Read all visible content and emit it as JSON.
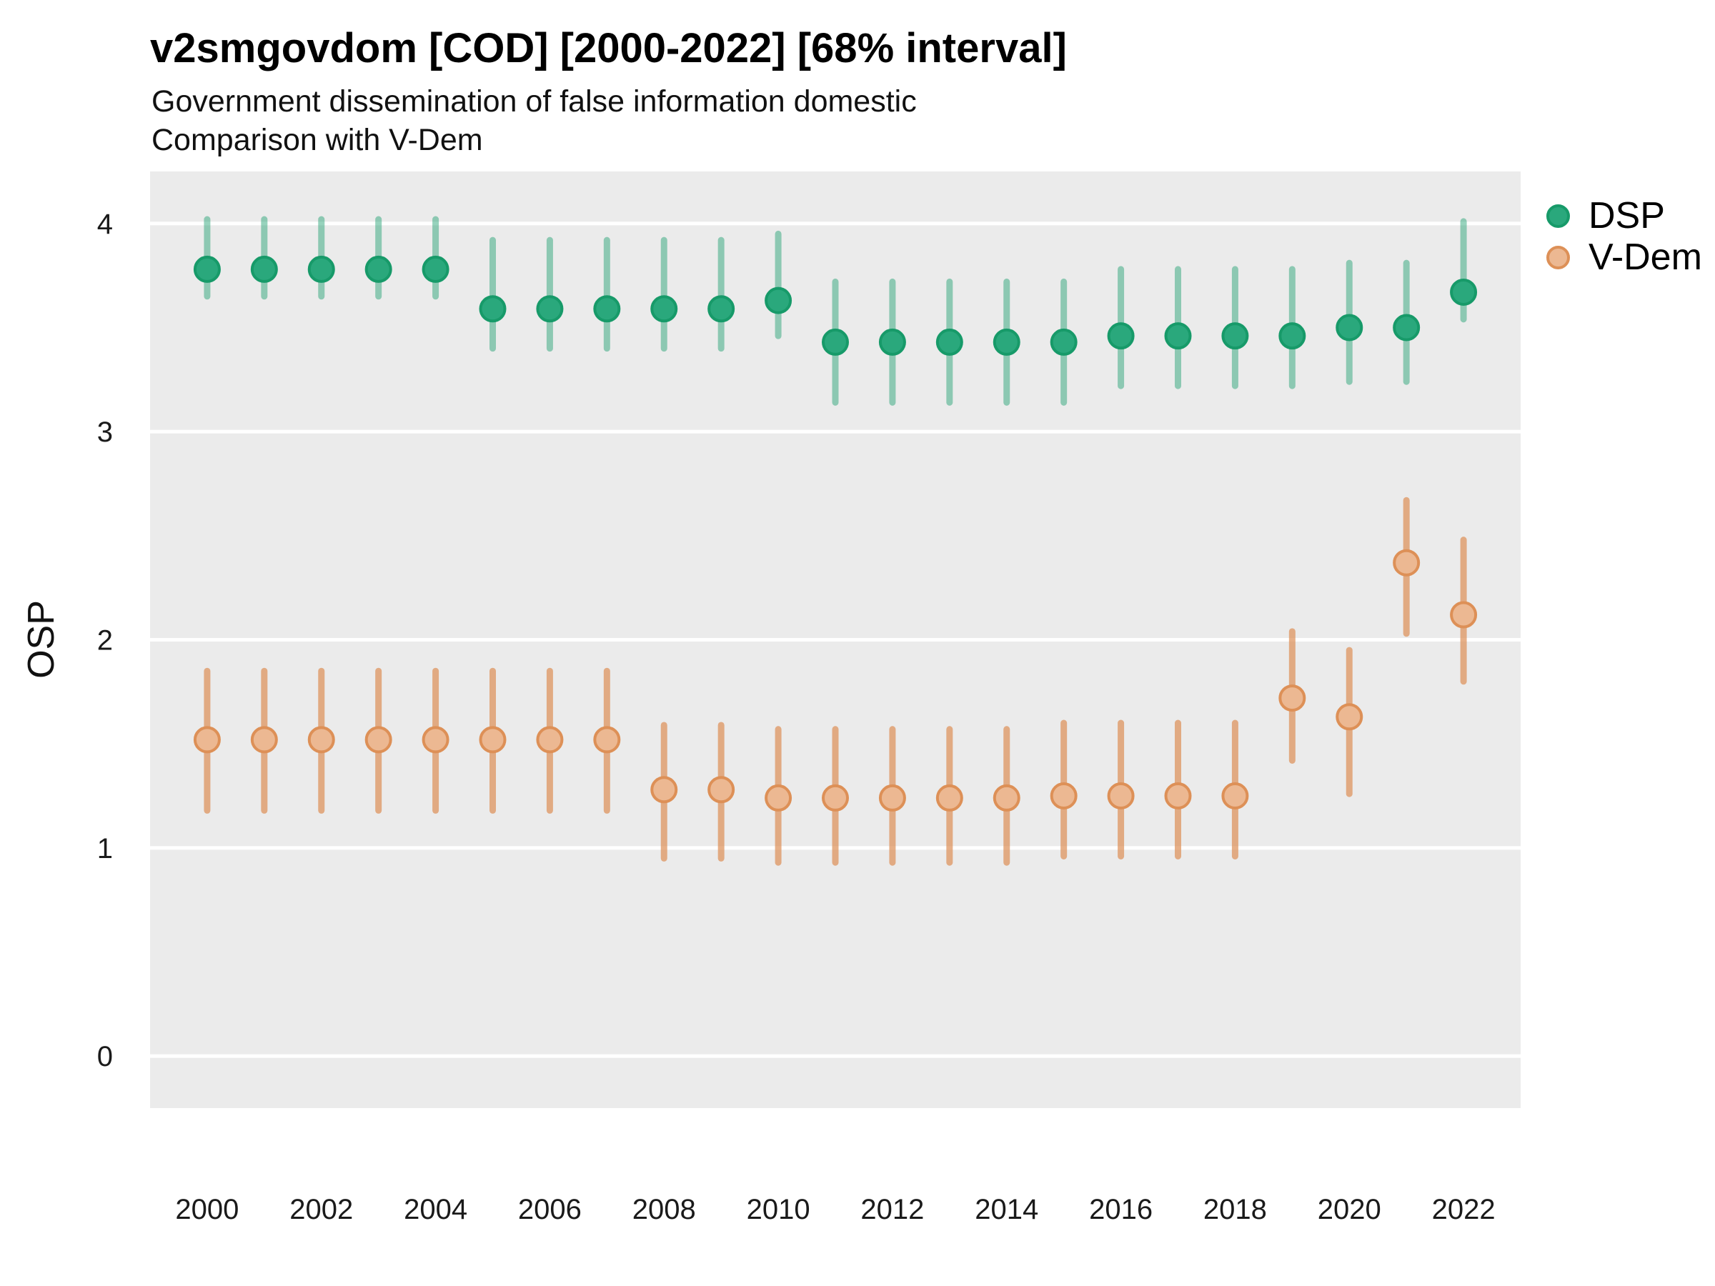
{
  "header": {
    "title": "v2smgovdom [COD] [2000-2022] [68% interval]",
    "subtitle_line1": "Government dissemination of false information domestic",
    "subtitle_line2": "Comparison with V-Dem"
  },
  "axes": {
    "y_title": "OSP",
    "y_tick_labels": [
      4,
      3,
      2,
      1,
      0
    ],
    "x_tick_labels": [
      2000,
      2002,
      2004,
      2006,
      2008,
      2010,
      2012,
      2014,
      2016,
      2018,
      2020,
      2022
    ]
  },
  "colors": {
    "panel_bg": "#ebebeb",
    "gridline": "#ffffff",
    "title_text": "#000000",
    "axis_text": "#1a1a1a"
  },
  "chart_data": {
    "type": "scatter",
    "style": "pointrange",
    "title": "v2smgovdom [COD] [2000-2022] [68% interval]",
    "subtitle": "Government dissemination of false information domestic — Comparison with V-Dem",
    "interval": "68%",
    "xlabel": "",
    "ylabel": "OSP",
    "xlim": [
      1999,
      2023
    ],
    "ylim": [
      -0.25,
      4.25
    ],
    "y_gridlines": [
      0,
      1,
      2,
      3,
      4
    ],
    "grid": "major-horizontal-only",
    "legend_position": "right-top",
    "series": [
      {
        "name": "DSP",
        "fill": "#2aa87c",
        "stroke": "#179a69",
        "bar": "rgba(24,158,108,0.45)",
        "points": [
          {
            "year": 2000,
            "est": 3.78,
            "lo": 3.65,
            "hi": 4.02
          },
          {
            "year": 2001,
            "est": 3.78,
            "lo": 3.65,
            "hi": 4.02
          },
          {
            "year": 2002,
            "est": 3.78,
            "lo": 3.65,
            "hi": 4.02
          },
          {
            "year": 2003,
            "est": 3.78,
            "lo": 3.65,
            "hi": 4.02
          },
          {
            "year": 2004,
            "est": 3.78,
            "lo": 3.65,
            "hi": 4.02
          },
          {
            "year": 2005,
            "est": 3.59,
            "lo": 3.4,
            "hi": 3.92
          },
          {
            "year": 2006,
            "est": 3.59,
            "lo": 3.4,
            "hi": 3.92
          },
          {
            "year": 2007,
            "est": 3.59,
            "lo": 3.4,
            "hi": 3.92
          },
          {
            "year": 2008,
            "est": 3.59,
            "lo": 3.4,
            "hi": 3.92
          },
          {
            "year": 2009,
            "est": 3.59,
            "lo": 3.4,
            "hi": 3.92
          },
          {
            "year": 2010,
            "est": 3.63,
            "lo": 3.46,
            "hi": 3.95
          },
          {
            "year": 2011,
            "est": 3.43,
            "lo": 3.14,
            "hi": 3.72
          },
          {
            "year": 2012,
            "est": 3.43,
            "lo": 3.14,
            "hi": 3.72
          },
          {
            "year": 2013,
            "est": 3.43,
            "lo": 3.14,
            "hi": 3.72
          },
          {
            "year": 2014,
            "est": 3.43,
            "lo": 3.14,
            "hi": 3.72
          },
          {
            "year": 2015,
            "est": 3.43,
            "lo": 3.14,
            "hi": 3.72
          },
          {
            "year": 2016,
            "est": 3.46,
            "lo": 3.22,
            "hi": 3.78
          },
          {
            "year": 2017,
            "est": 3.46,
            "lo": 3.22,
            "hi": 3.78
          },
          {
            "year": 2018,
            "est": 3.46,
            "lo": 3.22,
            "hi": 3.78
          },
          {
            "year": 2019,
            "est": 3.46,
            "lo": 3.22,
            "hi": 3.78
          },
          {
            "year": 2020,
            "est": 3.5,
            "lo": 3.24,
            "hi": 3.81
          },
          {
            "year": 2021,
            "est": 3.5,
            "lo": 3.24,
            "hi": 3.81
          },
          {
            "year": 2022,
            "est": 3.67,
            "lo": 3.54,
            "hi": 4.01
          }
        ]
      },
      {
        "name": "V-Dem",
        "fill": "#ecb892",
        "stroke": "#dd9057",
        "bar": "rgba(221,142,85,0.7)",
        "points": [
          {
            "year": 2000,
            "est": 1.52,
            "lo": 1.18,
            "hi": 1.85
          },
          {
            "year": 2001,
            "est": 1.52,
            "lo": 1.18,
            "hi": 1.85
          },
          {
            "year": 2002,
            "est": 1.52,
            "lo": 1.18,
            "hi": 1.85
          },
          {
            "year": 2003,
            "est": 1.52,
            "lo": 1.18,
            "hi": 1.85
          },
          {
            "year": 2004,
            "est": 1.52,
            "lo": 1.18,
            "hi": 1.85
          },
          {
            "year": 2005,
            "est": 1.52,
            "lo": 1.18,
            "hi": 1.85
          },
          {
            "year": 2006,
            "est": 1.52,
            "lo": 1.18,
            "hi": 1.85
          },
          {
            "year": 2007,
            "est": 1.52,
            "lo": 1.18,
            "hi": 1.85
          },
          {
            "year": 2008,
            "est": 1.28,
            "lo": 0.95,
            "hi": 1.59
          },
          {
            "year": 2009,
            "est": 1.28,
            "lo": 0.95,
            "hi": 1.59
          },
          {
            "year": 2010,
            "est": 1.24,
            "lo": 0.93,
            "hi": 1.57
          },
          {
            "year": 2011,
            "est": 1.24,
            "lo": 0.93,
            "hi": 1.57
          },
          {
            "year": 2012,
            "est": 1.24,
            "lo": 0.93,
            "hi": 1.57
          },
          {
            "year": 2013,
            "est": 1.24,
            "lo": 0.93,
            "hi": 1.57
          },
          {
            "year": 2014,
            "est": 1.24,
            "lo": 0.93,
            "hi": 1.57
          },
          {
            "year": 2015,
            "est": 1.25,
            "lo": 0.96,
            "hi": 1.6
          },
          {
            "year": 2016,
            "est": 1.25,
            "lo": 0.96,
            "hi": 1.6
          },
          {
            "year": 2017,
            "est": 1.25,
            "lo": 0.96,
            "hi": 1.6
          },
          {
            "year": 2018,
            "est": 1.25,
            "lo": 0.96,
            "hi": 1.6
          },
          {
            "year": 2019,
            "est": 1.72,
            "lo": 1.42,
            "hi": 2.04
          },
          {
            "year": 2020,
            "est": 1.63,
            "lo": 1.26,
            "hi": 1.95
          },
          {
            "year": 2021,
            "est": 2.37,
            "lo": 2.03,
            "hi": 2.67
          },
          {
            "year": 2022,
            "est": 2.12,
            "lo": 1.8,
            "hi": 2.48
          }
        ]
      }
    ]
  }
}
